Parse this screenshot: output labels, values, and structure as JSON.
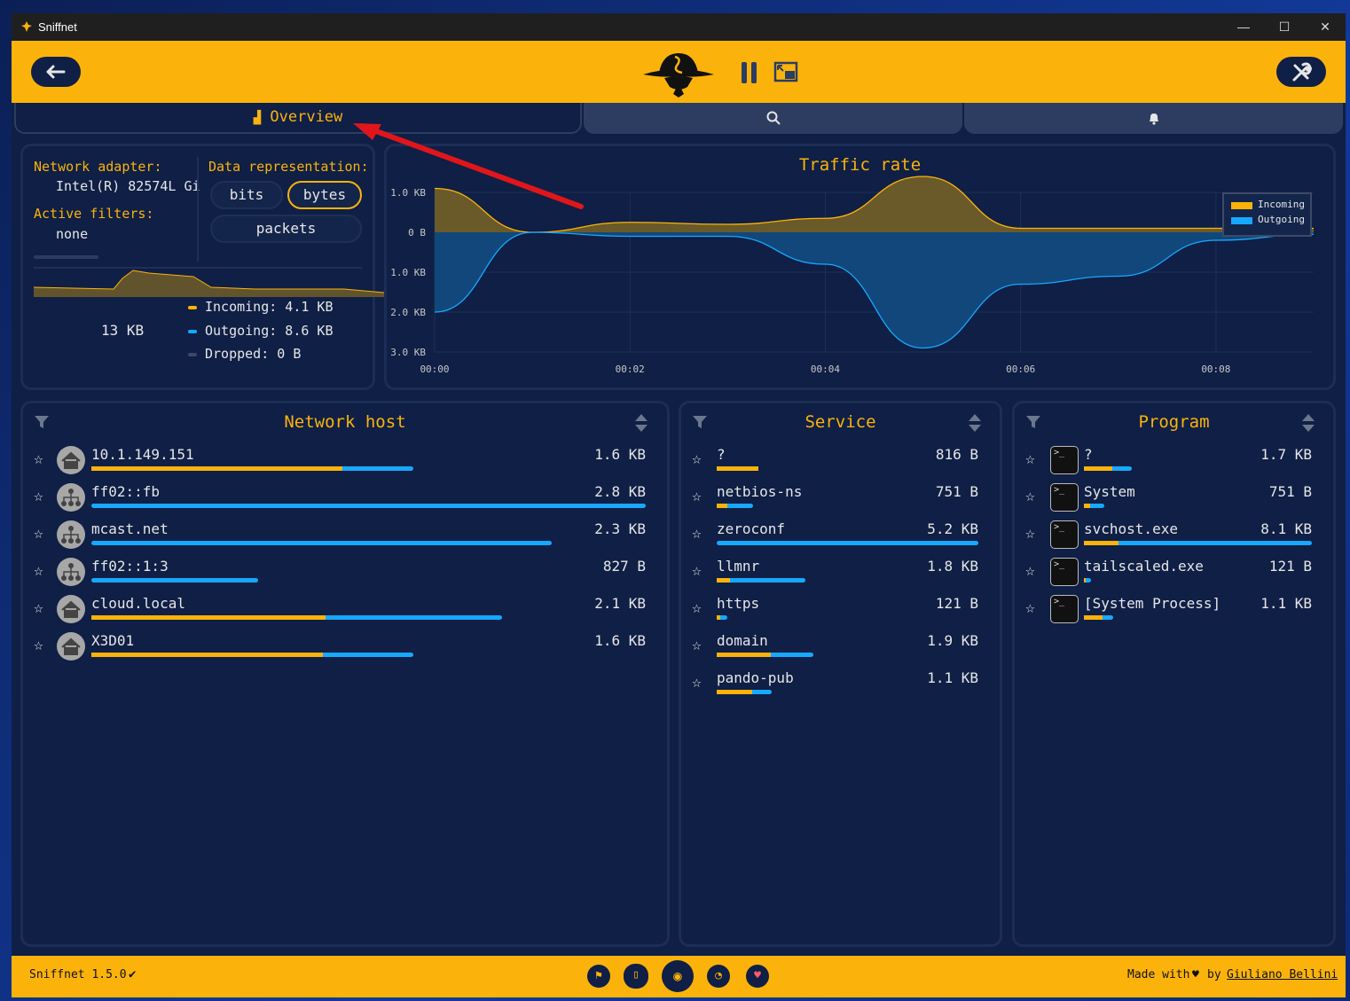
{
  "window": {
    "title": "Sniffnet",
    "min": "—",
    "max": "☐",
    "close": "✕"
  },
  "tabs": {
    "overview": "Overview",
    "inspect_icon": "magnifier-icon",
    "notifications_icon": "bell-icon"
  },
  "summary": {
    "adapter_label": "Network adapter:",
    "adapter_value": "Intel(R) 82574L Gi",
    "filters_label": "Active filters:",
    "filters_value": "none",
    "repr_label": "Data representation:",
    "repr_options": [
      "bits",
      "bytes",
      "packets"
    ],
    "repr_selected": "bytes",
    "total": "13 KB",
    "incoming": "Incoming: 4.1 KB",
    "outgoing": "Outgoing: 8.6 KB",
    "dropped": "Dropped: 0 B"
  },
  "traffic": {
    "title": "Traffic rate",
    "legend": [
      "Incoming",
      "Outgoing"
    ],
    "y_ticks": [
      "1.0 KB",
      "0 B",
      "1.0 KB",
      "2.0 KB",
      "3.0 KB"
    ],
    "x_ticks": [
      "00:00",
      "00:02",
      "00:04",
      "00:06",
      "00:08"
    ]
  },
  "chart_data": {
    "type": "area",
    "title": "Traffic rate",
    "x": [
      "00:00",
      "00:01",
      "00:02",
      "00:03",
      "00:04",
      "00:05",
      "00:06",
      "00:07",
      "00:08",
      "00:09"
    ],
    "series": [
      {
        "name": "Incoming",
        "values": [
          1.1,
          0.0,
          0.25,
          0.2,
          0.35,
          1.4,
          0.1,
          0.1,
          0.1,
          0.1
        ]
      },
      {
        "name": "Outgoing",
        "values": [
          -2.0,
          0.0,
          -0.1,
          -0.1,
          -0.8,
          -2.9,
          -1.3,
          -1.1,
          -0.2,
          -0.05
        ]
      }
    ],
    "ylabel": "",
    "ylim": [
      -3.0,
      1.0
    ],
    "colors": {
      "incoming": "#fbb30b",
      "outgoing": "#17a8ff"
    }
  },
  "hosts": {
    "title": "Network host",
    "rows": [
      {
        "name": "10.1.149.151",
        "size": "1.6 KB",
        "icon": "home-icon",
        "total": 0.58,
        "inratio": 0.78
      },
      {
        "name": "ff02::fb",
        "size": "2.8 KB",
        "icon": "network-icon",
        "total": 1.0,
        "inratio": 0.0
      },
      {
        "name": "mcast.net",
        "size": "2.3 KB",
        "icon": "network-icon",
        "total": 0.83,
        "inratio": 0.0
      },
      {
        "name": "ff02::1:3",
        "size": "827 B",
        "icon": "network-icon",
        "total": 0.3,
        "inratio": 0.0
      },
      {
        "name": "cloud.local",
        "size": "2.1 KB",
        "icon": "home-icon",
        "total": 0.74,
        "inratio": 0.57
      },
      {
        "name": "X3D01",
        "size": "1.6 KB",
        "icon": "home-icon",
        "total": 0.58,
        "inratio": 0.72
      }
    ]
  },
  "services": {
    "title": "Service",
    "rows": [
      {
        "name": "?",
        "size": "816 B",
        "total": 0.16,
        "inratio": 1.0
      },
      {
        "name": "netbios-ns",
        "size": "751 B",
        "total": 0.14,
        "inratio": 0.3
      },
      {
        "name": "zeroconf",
        "size": "5.2 KB",
        "total": 1.0,
        "inratio": 0.0
      },
      {
        "name": "llmnr",
        "size": "1.8 KB",
        "total": 0.34,
        "inratio": 0.15
      },
      {
        "name": "https",
        "size": "121 B",
        "total": 0.04,
        "inratio": 0.3
      },
      {
        "name": "domain",
        "size": "1.9 KB",
        "total": 0.37,
        "inratio": 0.56
      },
      {
        "name": "pando-pub",
        "size": "1.1 KB",
        "total": 0.21,
        "inratio": 0.65
      }
    ]
  },
  "programs": {
    "title": "Program",
    "rows": [
      {
        "name": "?",
        "size": "1.7 KB",
        "total": 0.21,
        "inratio": 0.6
      },
      {
        "name": "System",
        "size": "751 B",
        "total": 0.09,
        "inratio": 0.3
      },
      {
        "name": "svchost.exe",
        "size": "8.1 KB",
        "total": 1.0,
        "inratio": 0.15
      },
      {
        "name": "tailscaled.exe",
        "size": "121 B",
        "total": 0.03,
        "inratio": 0.3
      },
      {
        "name": "[System Process]",
        "size": "1.1 KB",
        "total": 0.13,
        "inratio": 0.65
      }
    ]
  },
  "footer": {
    "version": "Sniffnet 1.5.0",
    "check": "✔",
    "made_with": "Made with",
    "heart": "♥",
    "by": "by",
    "author": "Giuliano Bellini"
  }
}
